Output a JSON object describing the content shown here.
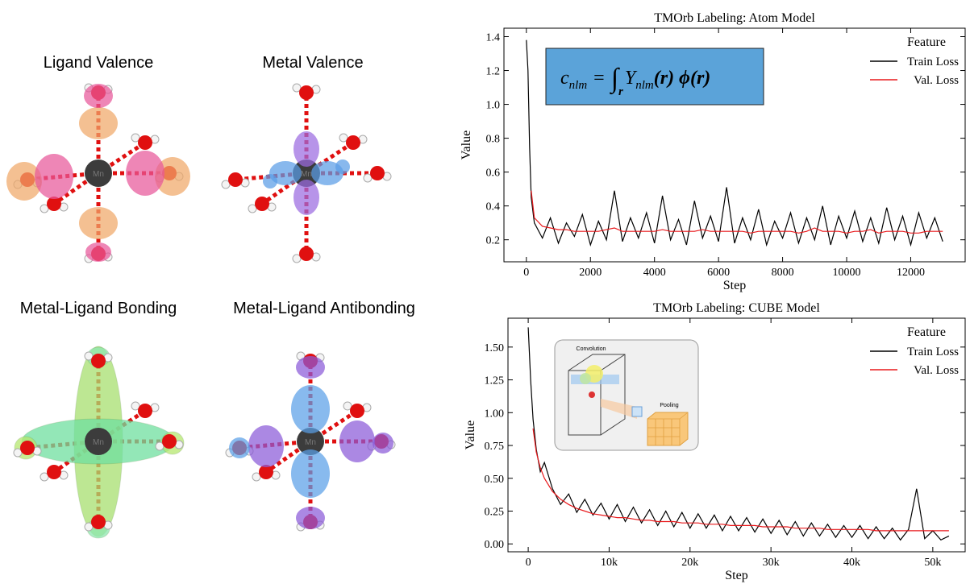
{
  "panels": [
    {
      "title": "Ligand Valence",
      "atom": "Mn"
    },
    {
      "title": "Metal Valence",
      "atom": "Mn"
    },
    {
      "title": "Metal-Ligand Bonding",
      "atom": "Mn"
    },
    {
      "title": "Metal-Ligand Antibonding",
      "atom": "Mn"
    }
  ],
  "equation": {
    "c": "c",
    "c_sub": "nlm",
    "equals": "=",
    "integral": "∫",
    "integral_sub": "r",
    "Y": "Y",
    "Y_sub": "nlm",
    "rest": "(r) ϕ(r)"
  },
  "inset": {
    "left": "Convolution",
    "right": "Pooling"
  },
  "chart_data": [
    {
      "type": "line",
      "title": "TMOrb Labeling: Atom Model",
      "xlabel": "Step",
      "ylabel": "Value",
      "legend_title": "Feature",
      "legend": "upper right",
      "x": [
        0,
        50,
        100,
        150,
        250,
        500,
        750,
        1000,
        1250,
        1500,
        1750,
        2000,
        2250,
        2500,
        2750,
        3000,
        3250,
        3500,
        3750,
        4000,
        4250,
        4500,
        4750,
        5000,
        5250,
        5500,
        5750,
        6000,
        6250,
        6500,
        6750,
        7000,
        7250,
        7500,
        7750,
        8000,
        8250,
        8500,
        8750,
        9000,
        9250,
        9500,
        9750,
        10000,
        10250,
        10500,
        10750,
        11000,
        11250,
        11500,
        11750,
        12000,
        12250,
        12500,
        12750,
        13000
      ],
      "series": [
        {
          "name": "Train Loss",
          "color": "#000000",
          "values": [
            1.38,
            1.2,
            0.75,
            0.45,
            0.3,
            0.21,
            0.33,
            0.18,
            0.3,
            0.22,
            0.35,
            0.17,
            0.31,
            0.2,
            0.49,
            0.19,
            0.33,
            0.21,
            0.36,
            0.18,
            0.46,
            0.2,
            0.32,
            0.17,
            0.43,
            0.21,
            0.34,
            0.19,
            0.51,
            0.18,
            0.33,
            0.2,
            0.38,
            0.17,
            0.31,
            0.21,
            0.36,
            0.18,
            0.33,
            0.2,
            0.4,
            0.17,
            0.34,
            0.21,
            0.37,
            0.19,
            0.33,
            0.18,
            0.39,
            0.2,
            0.34,
            0.17,
            0.36,
            0.21,
            0.33,
            0.19
          ]
        },
        {
          "name": "Val. Loss",
          "color": "#e8191c",
          "values": [
            null,
            null,
            null,
            0.49,
            0.33,
            0.28,
            0.27,
            0.26,
            0.26,
            0.25,
            0.25,
            0.25,
            0.25,
            0.26,
            0.27,
            0.25,
            0.25,
            0.25,
            0.25,
            0.25,
            0.26,
            0.25,
            0.25,
            0.25,
            0.25,
            0.26,
            0.25,
            0.25,
            0.25,
            0.25,
            0.25,
            0.24,
            0.25,
            0.25,
            0.25,
            0.25,
            0.25,
            0.24,
            0.25,
            0.27,
            0.25,
            0.25,
            0.25,
            0.24,
            0.25,
            0.25,
            0.26,
            0.24,
            0.25,
            0.25,
            0.25,
            0.24,
            0.24,
            0.25,
            0.25,
            0.25
          ]
        }
      ],
      "xlim": [
        -700,
        13700
      ],
      "ylim": [
        0.07,
        1.45
      ],
      "xticks": [
        0,
        2000,
        4000,
        6000,
        8000,
        10000,
        12000
      ],
      "yticks": [
        0.2,
        0.4,
        0.6,
        0.8,
        {
          "value": 1,
          "label": "1.0"
        },
        1.2,
        1.4
      ]
    },
    {
      "type": "line",
      "title": "TMOrb Labeling: CUBE Model",
      "xlabel": "Step",
      "ylabel": "Value",
      "legend_title": "Feature",
      "legend": "upper right",
      "x": [
        0,
        300,
        600,
        1000,
        1500,
        2000,
        3000,
        4000,
        5000,
        6000,
        7000,
        8000,
        9000,
        10000,
        11000,
        12000,
        13000,
        14000,
        15000,
        16000,
        17000,
        18000,
        19000,
        20000,
        21000,
        22000,
        23000,
        24000,
        25000,
        26000,
        27000,
        28000,
        29000,
        30000,
        31000,
        32000,
        33000,
        34000,
        35000,
        36000,
        37000,
        38000,
        39000,
        40000,
        41000,
        42000,
        43000,
        44000,
        45000,
        46000,
        47000,
        48000,
        49000,
        50000,
        51000,
        52000
      ],
      "series": [
        {
          "name": "Train Loss",
          "color": "#000000",
          "values": [
            1.65,
            1.25,
            0.95,
            0.72,
            0.55,
            0.62,
            0.42,
            0.3,
            0.38,
            0.24,
            0.34,
            0.22,
            0.31,
            0.19,
            0.3,
            0.17,
            0.28,
            0.16,
            0.26,
            0.14,
            0.25,
            0.13,
            0.24,
            0.12,
            0.23,
            0.12,
            0.22,
            0.1,
            0.21,
            0.1,
            0.2,
            0.09,
            0.19,
            0.08,
            0.18,
            0.07,
            0.17,
            0.06,
            0.16,
            0.06,
            0.15,
            0.05,
            0.14,
            0.05,
            0.14,
            0.04,
            0.13,
            0.04,
            0.12,
            0.03,
            0.11,
            0.42,
            0.04,
            0.1,
            0.03,
            0.06
          ]
        },
        {
          "name": "Val. Loss",
          "color": "#e8191c",
          "values": [
            null,
            null,
            0.88,
            0.7,
            0.58,
            0.5,
            0.4,
            0.34,
            0.3,
            0.27,
            0.25,
            0.23,
            0.22,
            0.21,
            0.2,
            0.2,
            0.19,
            0.18,
            0.18,
            0.17,
            0.17,
            0.17,
            0.16,
            0.16,
            0.16,
            0.15,
            0.15,
            0.15,
            0.14,
            0.14,
            0.14,
            0.14,
            0.13,
            0.13,
            0.13,
            0.13,
            0.12,
            0.12,
            0.12,
            0.12,
            0.11,
            0.11,
            0.11,
            0.11,
            0.11,
            0.11,
            0.1,
            0.1,
            0.1,
            0.1,
            0.1,
            0.1,
            0.1,
            0.1,
            0.1,
            0.1
          ]
        }
      ],
      "xlim": [
        -2500,
        54000
      ],
      "ylim": [
        -0.06,
        1.72
      ],
      "xticks": [
        0,
        {
          "value": 10000,
          "label": "10k"
        },
        {
          "value": 20000,
          "label": "20k"
        },
        {
          "value": 30000,
          "label": "30k"
        },
        {
          "value": 40000,
          "label": "40k"
        },
        {
          "value": 50000,
          "label": "50k"
        }
      ],
      "yticks": [
        {
          "value": 0,
          "label": "0.00"
        },
        {
          "value": 0.25,
          "label": "0.25"
        },
        {
          "value": 0.5,
          "label": "0.50"
        },
        {
          "value": 0.75,
          "label": "0.75"
        },
        {
          "value": 1,
          "label": "1.00"
        },
        {
          "value": 1.25,
          "label": "1.25"
        },
        {
          "value": 1.5,
          "label": "1.50"
        }
      ]
    }
  ]
}
